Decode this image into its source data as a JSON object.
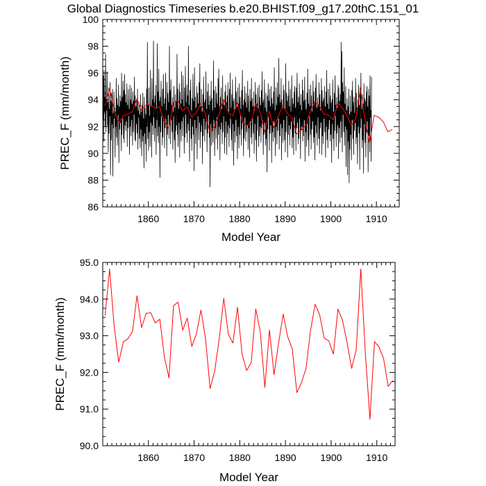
{
  "title": "Global Diagnostics Timeseries b.e20.BHIST.f09_g17.20thC.151_01",
  "chart_data": [
    {
      "type": "line",
      "panel": "top",
      "xlabel": "Model Year",
      "ylabel": "PREC_F (mm/month)",
      "xlim": [
        1850,
        1915
      ],
      "ylim": [
        86,
        100
      ],
      "xticks": [
        1860,
        1870,
        1880,
        1890,
        1900,
        1910
      ],
      "xtick_labels": [
        "1860",
        "1870",
        "1880",
        "1890",
        "1900",
        "1910"
      ],
      "yticks": [
        86,
        88,
        90,
        92,
        94,
        96,
        98,
        100
      ],
      "ytick_labels": [
        "86",
        "88",
        "90",
        "92",
        "94",
        "96",
        "98",
        "100"
      ],
      "grid": false,
      "series": [
        {
          "color": "#000000",
          "x_start": 1850.04,
          "x_step": 0.0833,
          "values": [
            92.5,
            95.8,
            90.9,
            96.2,
            93.1,
            94.2,
            92.0,
            97.4,
            91.6,
            94.0,
            93.2,
            96.1,
            92.1,
            93.8,
            90.1,
            94.9,
            91.5,
            93.3,
            92.8,
            95.3,
            88.4,
            93.9,
            91.0,
            94.5,
            92.2,
            94.8,
            88.3,
            93.0,
            91.9,
            94.6,
            92.6,
            93.4,
            89.7,
            93.1,
            92.0,
            95.6,
            91.2,
            94.1,
            90.6,
            93.6,
            92.9,
            95.1,
            89.3,
            93.5,
            91.8,
            94.3,
            92.3,
            93.9,
            90.2,
            96.0,
            91.4,
            94.2,
            92.6,
            95.4,
            91.1,
            94.7,
            90.8,
            95.9,
            92.1,
            94.4,
            91.7,
            93.8,
            92.4,
            95.2,
            90.5,
            93.6,
            91.9,
            94.8,
            92.8,
            93.3,
            89.9,
            95.1,
            92.0,
            94.0,
            91.3,
            94.9,
            92.5,
            93.7,
            90.6,
            94.6,
            91.6,
            93.9,
            92.9,
            95.7,
            91.0,
            94.3,
            90.9,
            93.5,
            92.2,
            94.1,
            91.5,
            94.8,
            90.3,
            93.2,
            92.7,
            93.8,
            91.1,
            92.9,
            90.4,
            94.4,
            91.8,
            93.1,
            89.8,
            93.6,
            90.9,
            94.5,
            91.3,
            92.6,
            88.9,
            94.2,
            91.5,
            93.4,
            90.7,
            92.9,
            89.4,
            94.8,
            92.0,
            98.3,
            91.1,
            93.6,
            90.2,
            94.9,
            91.6,
            92.8,
            90.5,
            96.2,
            92.3,
            93.5,
            89.7,
            95.6,
            92.1,
            94.0,
            91.4,
            98.4,
            92.7,
            93.8,
            90.9,
            94.3,
            91.9,
            95.1,
            89.9,
            93.4,
            92.5,
            98.2,
            91.3,
            94.6,
            90.8,
            96.3,
            92.0,
            93.9,
            88.2,
            94.2,
            91.6,
            95.4,
            92.8,
            93.5,
            90.6,
            94.8,
            91.2,
            95.9,
            92.4,
            93.7,
            90.4,
            94.1,
            91.9,
            96.0,
            92.6,
            93.2,
            89.8,
            95.3,
            91.4,
            94.5,
            92.9,
            93.8,
            91.1,
            98.0,
            92.2,
            94.7,
            90.7,
            95.5,
            92.5,
            93.6,
            91.6,
            94.2,
            90.3,
            93.1,
            92.8,
            95.0,
            91.0,
            93.4,
            89.3,
            94.4,
            91.7,
            93.9,
            92.1,
            97.4,
            91.4,
            94.8,
            90.5,
            93.3,
            92.3,
            95.2,
            89.7,
            94.6,
            91.8,
            93.7,
            90.9,
            96.1,
            92.4,
            94.0,
            91.3,
            95.8,
            92.7,
            93.5,
            90.0,
            94.9,
            91.2,
            96.5,
            92.9,
            93.8,
            91.5,
            95.1,
            90.8,
            94.3,
            92.2,
            98.0,
            91.7,
            93.6,
            89.4,
            94.7,
            92.6,
            95.5,
            91.1,
            93.2,
            90.2,
            94.1,
            92.0,
            95.9,
            91.4,
            93.9,
            88.7,
            96.4,
            92.5,
            94.2,
            90.7,
            93.4,
            91.9,
            95.0,
            89.6,
            94.5,
            92.8,
            93.7,
            91.0,
            95.3,
            92.3,
            96.7,
            90.4,
            93.5,
            91.6,
            94.8,
            92.1,
            93.1,
            89.2,
            94.4,
            91.3,
            95.7,
            92.6,
            93.8,
            90.9,
            94.0,
            91.8,
            96.1,
            92.4,
            93.3,
            90.1,
            94.6,
            91.5,
            95.2,
            92.9,
            93.6,
            91.2,
            94.3,
            87.5,
            93.9,
            92.2,
            95.4,
            90.6,
            94.1,
            91.7,
            93.2,
            90.8,
            96.9,
            92.5,
            94.7,
            89.8,
            93.4,
            91.9,
            95.0,
            91.1,
            94.5,
            92.7,
            93.7,
            90.3,
            95.6,
            91.4,
            96.3,
            92.0,
            93.5,
            89.5,
            94.2,
            91.8,
            94.9,
            92.3,
            93.3,
            90.7,
            95.8,
            91.6,
            94.0,
            92.8,
            93.6,
            90.0,
            94.6,
            91.2,
            95.1,
            92.4,
            93.8,
            89.9,
            94.3,
            91.5,
            95.3,
            92.1,
            93.1,
            90.5,
            94.8,
            91.9,
            96.0,
            92.6,
            93.4,
            91.0,
            94.4,
            90.2,
            95.5,
            92.2,
            93.9,
            89.1,
            94.1,
            91.7,
            93.2,
            90.8,
            95.7,
            92.5,
            94.6,
            91.3,
            93.5,
            89.6,
            94.9,
            92.0,
            93.7,
            90.4,
            95.2,
            91.4,
            94.2,
            92.9,
            93.3,
            90.6,
            94.7,
            91.8,
            96.2,
            92.3,
            93.6,
            89.8,
            94.0,
            91.1,
            95.0,
            92.7,
            93.8,
            90.9,
            94.5,
            91.6,
            93.4,
            92.1,
            95.4,
            90.3,
            94.3,
            91.9,
            93.1,
            89.7,
            94.8,
            92.4,
            93.9,
            91.2,
            95.6,
            90.7,
            94.1,
            92.6,
            93.5,
            91.5,
            94.6,
            90.0,
            93.2,
            92.2,
            95.3,
            91.0,
            94.4,
            89.4,
            93.7,
            91.7,
            94.9,
            92.8,
            93.3,
            90.5,
            95.1,
            91.3,
            94.2,
            92.0,
            93.6,
            90.8,
            94.7,
            91.9,
            96.1,
            92.5,
            93.8,
            89.9,
            94.0,
            91.4,
            95.5,
            92.3,
            93.4,
            90.6,
            94.5,
            91.1,
            93.1,
            88.6,
            94.3,
            91.8,
            95.2,
            92.7,
            93.9,
            90.2,
            94.8,
            91.5,
            93.5,
            92.1,
            95.0,
            89.3,
            94.1,
            91.6,
            93.7,
            90.9,
            94.6,
            92.4,
            96.4,
            91.2,
            93.2,
            89.8,
            94.9,
            92.0,
            93.6,
            90.7,
            95.3,
            91.7,
            94.2,
            92.6,
            97.1,
            90.3,
            94.4,
            91.3,
            93.8,
            92.2,
            95.6,
            89.5,
            94.0,
            91.9,
            93.4,
            90.8,
            95.1,
            92.5,
            94.7,
            91.0,
            93.3,
            90.1,
            96.7,
            91.6,
            94.5,
            92.8,
            93.9,
            89.7,
            94.3,
            91.4,
            95.4,
            92.1,
            93.5,
            90.6,
            94.8,
            91.8,
            93.1,
            92.4,
            95.8,
            90.4,
            94.1,
            91.2,
            93.7,
            89.9,
            94.6,
            92.7,
            95.0,
            91.5,
            93.4,
            90.2,
            94.9,
            91.9,
            96.0,
            92.3,
            93.8,
            90.7,
            94.2,
            91.1,
            95.2,
            92.6,
            93.6,
            89.6,
            94.4,
            91.7,
            93.2,
            92.0,
            95.5,
            90.9,
            94.7,
            91.3,
            93.9,
            92.5,
            95.7,
            89.4,
            94.0,
            91.6,
            93.3,
            90.5,
            94.5,
            92.2,
            96.3,
            91.0,
            93.7,
            89.8,
            94.8,
            92.8,
            93.5,
            91.4,
            95.1,
            90.3,
            94.3,
            91.8,
            93.1,
            92.4,
            95.4,
            90.8,
            94.6,
            91.2,
            93.8,
            89.5,
            94.9,
            92.1,
            95.9,
            91.5,
            93.4,
            90.6,
            94.2,
            92.7,
            93.6,
            91.1,
            95.3,
            90.0,
            94.4,
            91.9,
            93.2,
            92.3,
            95.6,
            89.9,
            94.7,
            91.3,
            93.9,
            90.7,
            94.1,
            92.6,
            95.0,
            91.6,
            93.5,
            89.7,
            94.6,
            92.0,
            96.2,
            91.0,
            93.7,
            90.4,
            94.8,
            91.8,
            93.3,
            92.5,
            95.2,
            90.9,
            94.3,
            91.4,
            93.8,
            89.3,
            94.0,
            92.2,
            95.5,
            91.1,
            93.1,
            90.2,
            94.5,
            91.7,
            95.8,
            92.8,
            93.6,
            90.5,
            94.2,
            91.5,
            93.4,
            92.1,
            95.1,
            89.6,
            94.9,
            91.9,
            93.9,
            90.8,
            94.4,
            92.4,
            98.3,
            91.2,
            97.6,
            90.1,
            95.3,
            92.9,
            94.6,
            91.6,
            96.4,
            90.6,
            93.7,
            92.0,
            95.0,
            89.0,
            93.2,
            91.8,
            94.1,
            88.4,
            93.5,
            90.9,
            94.8,
            87.8,
            92.9,
            90.3,
            94.3,
            91.4,
            93.1,
            89.5,
            94.7,
            92.5,
            95.4,
            91.1,
            93.8,
            89.9,
            94.2,
            91.7,
            93.0,
            92.3,
            95.6,
            90.7,
            94.5,
            91.2,
            93.4,
            89.2,
            94.0,
            92.0,
            95.1,
            91.5,
            93.6,
            88.8,
            94.9,
            91.9,
            96.0,
            92.6,
            93.3,
            90.4,
            94.4,
            91.0,
            93.7,
            88.5,
            95.2,
            92.2,
            94.1,
            90.8,
            93.9,
            89.7,
            94.6,
            91.6,
            95.0,
            92.4,
            93.5,
            88.6,
            94.8,
            91.3,
            94.3,
            90.1,
            95.8,
            92.7,
            93.2,
            89.4,
            95.7
          ]
        },
        {
          "color": "#ff0000",
          "x_start": 1850.5,
          "x_step": 1,
          "values": [
            93.55,
            94.82,
            93.25,
            92.28,
            92.83,
            92.92,
            93.11,
            94.09,
            93.22,
            93.61,
            93.63,
            93.35,
            93.45,
            92.41,
            91.85,
            93.82,
            93.92,
            93.15,
            93.48,
            92.71,
            93.05,
            93.7,
            92.93,
            91.56,
            92.03,
            92.92,
            94.02,
            93.04,
            92.8,
            93.78,
            92.5,
            92.05,
            92.27,
            93.73,
            93.1,
            91.59,
            93.16,
            91.94,
            92.8,
            93.59,
            92.97,
            92.64,
            91.45,
            91.72,
            92.1,
            93.15,
            93.86,
            93.57,
            92.93,
            92.86,
            92.5,
            93.73,
            93.42,
            92.81,
            92.11,
            92.62,
            94.82,
            92.52,
            90.72,
            92.84,
            92.69,
            92.37,
            91.62,
            91.78
          ]
        }
      ]
    },
    {
      "type": "line",
      "panel": "bottom",
      "xlabel": "Model Year",
      "ylabel": "PREC_F (mm/month)",
      "xlim": [
        1850,
        1914
      ],
      "ylim": [
        90,
        95
      ],
      "xticks": [
        1860,
        1870,
        1880,
        1890,
        1900,
        1910
      ],
      "xtick_labels": [
        "1860",
        "1870",
        "1880",
        "1890",
        "1900",
        "1910"
      ],
      "yticks": [
        90,
        91,
        92,
        93,
        94,
        95
      ],
      "ytick_labels": [
        "90.0",
        "91.0",
        "92.0",
        "93.0",
        "94.0",
        "95.0"
      ],
      "grid": false,
      "series": [
        {
          "color": "#ff0000",
          "x_start": 1850.5,
          "x_step": 1,
          "values": [
            93.55,
            94.82,
            93.25,
            92.28,
            92.83,
            92.92,
            93.11,
            94.09,
            93.22,
            93.61,
            93.63,
            93.35,
            93.45,
            92.41,
            91.85,
            93.82,
            93.92,
            93.15,
            93.48,
            92.71,
            93.05,
            93.7,
            92.93,
            91.56,
            92.03,
            92.92,
            94.02,
            93.04,
            92.8,
            93.78,
            92.5,
            92.05,
            92.27,
            93.73,
            93.1,
            91.59,
            93.16,
            91.94,
            92.8,
            93.59,
            92.97,
            92.64,
            91.45,
            91.72,
            92.1,
            93.15,
            93.86,
            93.57,
            92.93,
            92.86,
            92.5,
            93.73,
            93.42,
            92.81,
            92.11,
            92.62,
            94.82,
            92.52,
            90.72,
            92.84,
            92.69,
            92.37,
            91.62,
            91.78
          ]
        }
      ]
    }
  ]
}
